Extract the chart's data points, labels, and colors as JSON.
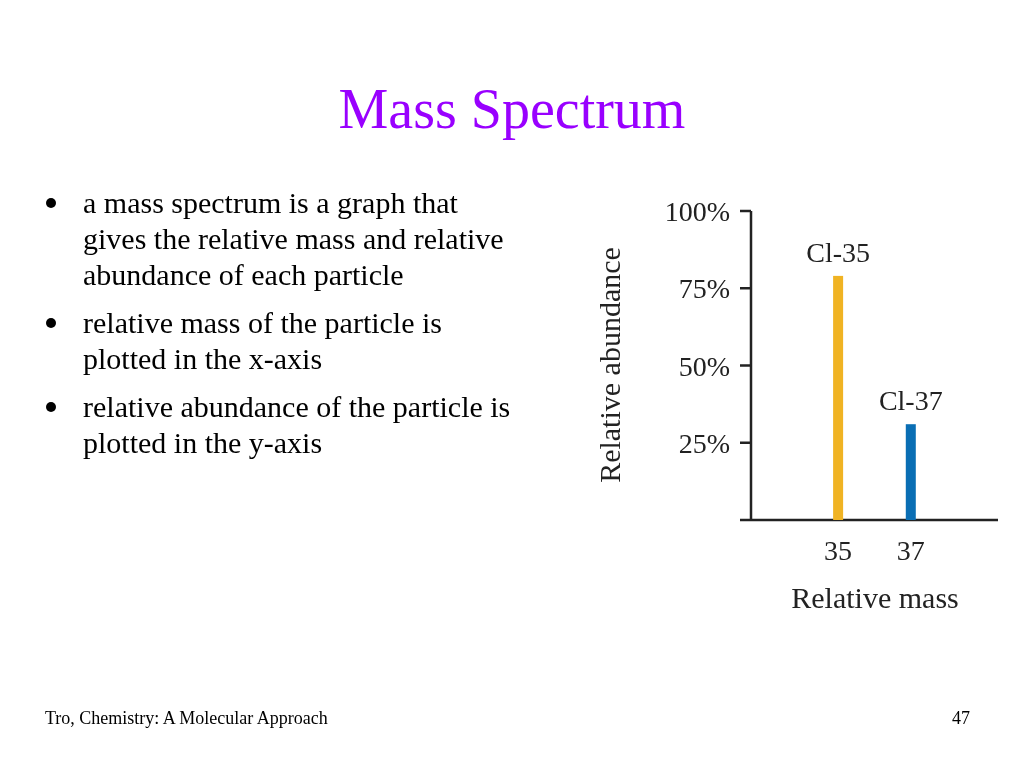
{
  "chart_data": {
    "type": "bar",
    "title": "Mass Spectrum",
    "xlabel": "Relative mass",
    "ylabel": "Relative abundance",
    "x": [
      35,
      37
    ],
    "values": [
      79,
      31
    ],
    "colors": [
      "#f0b323",
      "#0a6eb4"
    ],
    "xlim": [
      32.3,
      39.4
    ],
    "xticks": [
      35,
      37
    ],
    "ylim": [
      0,
      100
    ],
    "yticks": [
      {
        "value": 25,
        "label": "25%"
      },
      {
        "value": 50,
        "label": "50%"
      },
      {
        "value": 75,
        "label": "75%"
      },
      {
        "value": 100,
        "label": "100%"
      }
    ],
    "annotations": [
      {
        "text": "Cl-35",
        "x": 35,
        "y": 79
      },
      {
        "text": "Cl-37",
        "x": 37,
        "y": 31
      },
      "a mass spectrum is a graph that gives the relative mass and relative abundance of each particle",
      "relative mass of the particle is plotted in the x-axis",
      "relative abundance of the particle is plotted in the y-axis",
      "Tro, Chemistry: A Molecular Approach",
      "47"
    ]
  }
}
